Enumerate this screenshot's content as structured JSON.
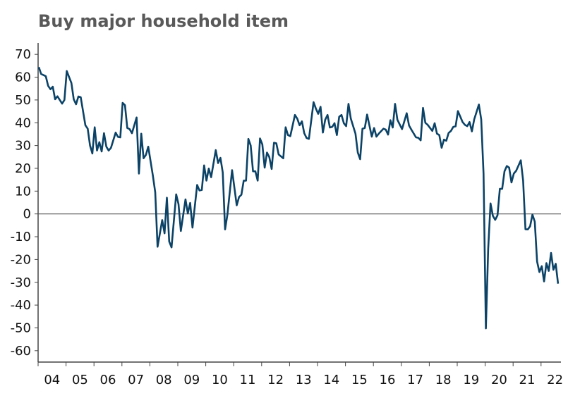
{
  "chart_data": {
    "type": "line",
    "title": "Buy major household item",
    "xlabel": "",
    "ylabel": "",
    "ylim": [
      -65,
      75
    ],
    "yticks": [
      70,
      60,
      50,
      40,
      30,
      20,
      10,
      0,
      -10,
      -20,
      -30,
      -40,
      -50,
      -60
    ],
    "xtick_labels": [
      "04",
      "05",
      "06",
      "07",
      "08",
      "09",
      "10",
      "11",
      "12",
      "13",
      "14",
      "15",
      "16",
      "17",
      "18",
      "19",
      "20",
      "21",
      "22"
    ],
    "xlim": [
      "2004-01",
      "2022-12"
    ],
    "zero_line": true,
    "grid": false,
    "line_color": "#0b4266",
    "points": [
      [
        "2004-01",
        64.4
      ],
      [
        "2004-02",
        61.4
      ],
      [
        "2004-04",
        60.4
      ],
      [
        "2004-05",
        56.2
      ],
      [
        "2004-06",
        54.7
      ],
      [
        "2004-07",
        55.8
      ],
      [
        "2004-08",
        50.3
      ],
      [
        "2004-09",
        51.6
      ],
      [
        "2004-11",
        48.4
      ],
      [
        "2004-12",
        50
      ],
      [
        "2005-01",
        62.7
      ],
      [
        "2005-03",
        57.4
      ],
      [
        "2005-04",
        50.3
      ],
      [
        "2005-05",
        48.1
      ],
      [
        "2005-06",
        51.5
      ],
      [
        "2005-07",
        51.2
      ],
      [
        "2005-09",
        38.9
      ],
      [
        "2005-10",
        37.4
      ],
      [
        "2005-11",
        30
      ],
      [
        "2005-12",
        26.5
      ],
      [
        "2006-01",
        38
      ],
      [
        "2006-02",
        27.8
      ],
      [
        "2006-03",
        31.5
      ],
      [
        "2006-04",
        27.4
      ],
      [
        "2006-05",
        35.4
      ],
      [
        "2006-06",
        29.5
      ],
      [
        "2006-07",
        27.8
      ],
      [
        "2006-08",
        29
      ],
      [
        "2006-10",
        35.7
      ],
      [
        "2006-11",
        33.8
      ],
      [
        "2006-12",
        33.6
      ],
      [
        "2007-01",
        48.7
      ],
      [
        "2007-02",
        47.7
      ],
      [
        "2007-03",
        37.7
      ],
      [
        "2007-04",
        37.2
      ],
      [
        "2007-05",
        35.4
      ],
      [
        "2007-07",
        42.3
      ],
      [
        "2007-08",
        17.7
      ],
      [
        "2007-09",
        35.2
      ],
      [
        "2007-10",
        24.4
      ],
      [
        "2007-11",
        25.9
      ],
      [
        "2007-12",
        29.5
      ],
      [
        "2008-02",
        16.7
      ],
      [
        "2008-03",
        9.5
      ],
      [
        "2008-04",
        -14.4
      ],
      [
        "2008-06",
        -2.7
      ],
      [
        "2008-07",
        -8.5
      ],
      [
        "2008-08",
        7.1
      ],
      [
        "2008-09",
        -12.1
      ],
      [
        "2008-10",
        -14.7
      ],
      [
        "2008-12",
        8.6
      ],
      [
        "2009-01",
        4.3
      ],
      [
        "2009-02",
        -7.5
      ],
      [
        "2009-04",
        6.4
      ],
      [
        "2009-05",
        0.2
      ],
      [
        "2009-06",
        4.8
      ],
      [
        "2009-07",
        -6
      ],
      [
        "2009-09",
        12.7
      ],
      [
        "2009-10",
        10.3
      ],
      [
        "2009-11",
        10.5
      ],
      [
        "2009-12",
        21.3
      ],
      [
        "2010-01",
        14.6
      ],
      [
        "2010-02",
        19.9
      ],
      [
        "2010-03",
        16.1
      ],
      [
        "2010-05",
        28
      ],
      [
        "2010-06",
        22.3
      ],
      [
        "2010-07",
        24.6
      ],
      [
        "2010-08",
        18.2
      ],
      [
        "2010-09",
        -6.8
      ],
      [
        "2010-10",
        -0.3
      ],
      [
        "2010-12",
        19.2
      ],
      [
        "2011-02",
        3.8
      ],
      [
        "2011-03",
        7.4
      ],
      [
        "2011-04",
        8.4
      ],
      [
        "2011-05",
        14.6
      ],
      [
        "2011-06",
        14.6
      ],
      [
        "2011-07",
        32.9
      ],
      [
        "2011-08",
        30
      ],
      [
        "2011-09",
        18.7
      ],
      [
        "2011-10",
        18.7
      ],
      [
        "2011-11",
        14.6
      ],
      [
        "2011-12",
        33.1
      ],
      [
        "2012-01",
        30.5
      ],
      [
        "2012-02",
        20.3
      ],
      [
        "2012-03",
        26.9
      ],
      [
        "2012-04",
        24.9
      ],
      [
        "2012-05",
        19.7
      ],
      [
        "2012-06",
        31.2
      ],
      [
        "2012-07",
        31
      ],
      [
        "2012-08",
        26.1
      ],
      [
        "2012-10",
        24.4
      ],
      [
        "2012-11",
        38
      ],
      [
        "2012-12",
        34.6
      ],
      [
        "2013-01",
        34.1
      ],
      [
        "2013-03",
        43.4
      ],
      [
        "2013-04",
        41.8
      ],
      [
        "2013-05",
        38.9
      ],
      [
        "2013-06",
        40.6
      ],
      [
        "2013-07",
        35.4
      ],
      [
        "2013-08",
        33.3
      ],
      [
        "2013-09",
        32.9
      ],
      [
        "2013-11",
        49
      ],
      [
        "2013-12",
        46.2
      ],
      [
        "2014-01",
        43.9
      ],
      [
        "2014-02",
        47
      ],
      [
        "2014-03",
        35.7
      ],
      [
        "2014-04",
        41.3
      ],
      [
        "2014-05",
        43.4
      ],
      [
        "2014-06",
        37.9
      ],
      [
        "2014-07",
        38.2
      ],
      [
        "2014-08",
        39.8
      ],
      [
        "2014-09",
        34.6
      ],
      [
        "2014-10",
        42.6
      ],
      [
        "2014-11",
        43.4
      ],
      [
        "2014-12",
        39.8
      ],
      [
        "2015-01",
        38.5
      ],
      [
        "2015-02",
        48.3
      ],
      [
        "2015-03",
        41.8
      ],
      [
        "2015-05",
        35.2
      ],
      [
        "2015-06",
        26.9
      ],
      [
        "2015-07",
        24
      ],
      [
        "2015-08",
        37.4
      ],
      [
        "2015-09",
        37.7
      ],
      [
        "2015-10",
        43.6
      ],
      [
        "2015-12",
        33.9
      ],
      [
        "2016-01",
        37.7
      ],
      [
        "2016-02",
        33.9
      ],
      [
        "2016-03",
        35.2
      ],
      [
        "2016-05",
        37.4
      ],
      [
        "2016-06",
        37
      ],
      [
        "2016-07",
        34.8
      ],
      [
        "2016-08",
        41.1
      ],
      [
        "2016-09",
        37.9
      ],
      [
        "2016-10",
        48.3
      ],
      [
        "2016-11",
        41.3
      ],
      [
        "2017-01",
        37.2
      ],
      [
        "2017-03",
        44.2
      ],
      [
        "2017-04",
        38.8
      ],
      [
        "2017-05",
        37
      ],
      [
        "2017-07",
        33.6
      ],
      [
        "2017-08",
        33.4
      ],
      [
        "2017-09",
        32.3
      ],
      [
        "2017-10",
        46.5
      ],
      [
        "2017-11",
        40
      ],
      [
        "2017-12",
        39.1
      ],
      [
        "2018-02",
        36.4
      ],
      [
        "2018-03",
        39.8
      ],
      [
        "2018-04",
        35.2
      ],
      [
        "2018-05",
        34.6
      ],
      [
        "2018-06",
        29
      ],
      [
        "2018-07",
        32.6
      ],
      [
        "2018-08",
        32.1
      ],
      [
        "2018-09",
        35.5
      ],
      [
        "2018-10",
        36.4
      ],
      [
        "2018-11",
        38.2
      ],
      [
        "2018-12",
        38.4
      ],
      [
        "2019-01",
        45.1
      ],
      [
        "2019-03",
        40.3
      ],
      [
        "2019-04",
        39.1
      ],
      [
        "2019-05",
        38.5
      ],
      [
        "2019-06",
        40.3
      ],
      [
        "2019-07",
        36.2
      ],
      [
        "2019-08",
        41.5
      ],
      [
        "2019-10",
        48
      ],
      [
        "2019-11",
        41.5
      ],
      [
        "2019-12",
        17.7
      ],
      [
        "2020-01",
        -50.2
      ],
      [
        "2020-02",
        -15.2
      ],
      [
        "2020-03",
        4.6
      ],
      [
        "2020-04",
        -0.8
      ],
      [
        "2020-05",
        -2.6
      ],
      [
        "2020-06",
        -0.6
      ],
      [
        "2020-07",
        11
      ],
      [
        "2020-08",
        11
      ],
      [
        "2020-09",
        18.7
      ],
      [
        "2020-10",
        21
      ],
      [
        "2020-11",
        20.3
      ],
      [
        "2020-12",
        13.8
      ],
      [
        "2021-01",
        17.7
      ],
      [
        "2021-02",
        18.9
      ],
      [
        "2021-04",
        23.5
      ],
      [
        "2021-05",
        14.6
      ],
      [
        "2021-06",
        -6.7
      ],
      [
        "2021-07",
        -6.8
      ],
      [
        "2021-08",
        -5.4
      ],
      [
        "2021-09",
        -0.3
      ],
      [
        "2021-10",
        -3.4
      ],
      [
        "2021-11",
        -20.9
      ],
      [
        "2021-12",
        -25.5
      ],
      [
        "2022-01",
        -22.9
      ],
      [
        "2022-02",
        -29.6
      ],
      [
        "2022-03",
        -21.6
      ],
      [
        "2022-04",
        -25
      ],
      [
        "2022-05",
        -17.1
      ],
      [
        "2022-06",
        -24.5
      ],
      [
        "2022-07",
        -21.9
      ],
      [
        "2022-08",
        -30.6
      ]
    ]
  }
}
